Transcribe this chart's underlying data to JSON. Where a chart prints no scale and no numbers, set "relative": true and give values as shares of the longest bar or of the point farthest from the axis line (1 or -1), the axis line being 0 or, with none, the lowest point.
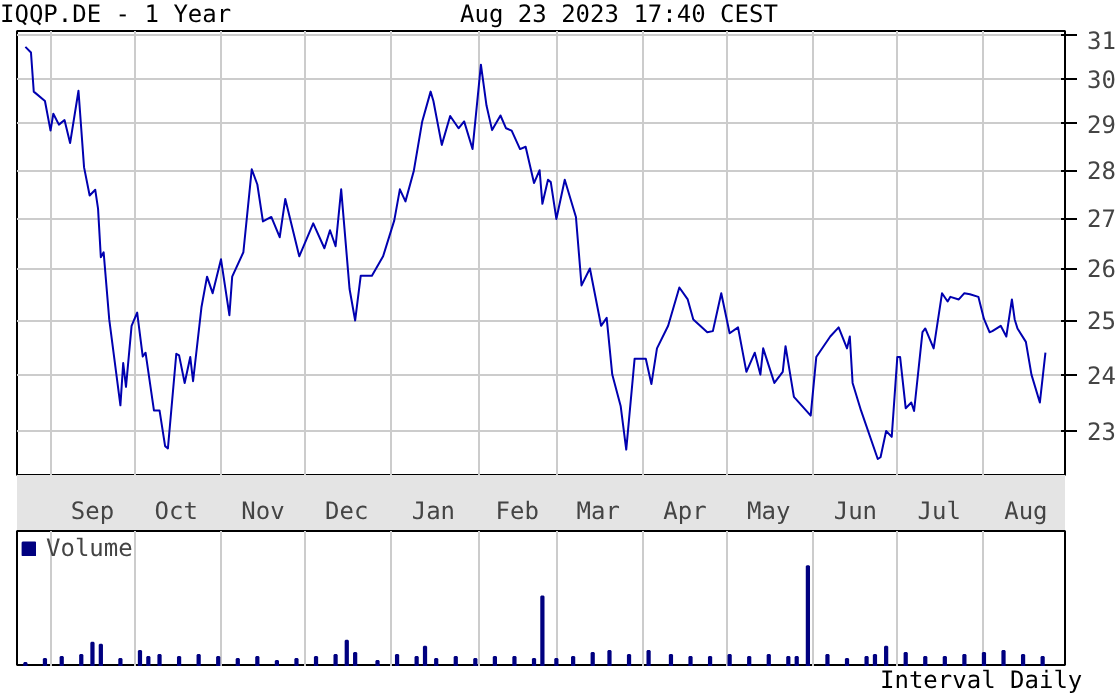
{
  "chart_data": [
    {
      "type": "line",
      "title": "IQQP.DE - 1 Year",
      "subtitle": "Aug 23 2023 17:40 CEST",
      "log": "y",
      "grid": true,
      "legend": false,
      "x": [
        "2022-08-23",
        "2022-08-25",
        "2022-08-26",
        "2022-08-30",
        "2022-09-01",
        "2022-09-02",
        "2022-09-04",
        "2022-09-06",
        "2022-09-08",
        "2022-09-11",
        "2022-09-13",
        "2022-09-15",
        "2022-09-17",
        "2022-09-18",
        "2022-09-19",
        "2022-09-20",
        "2022-09-22",
        "2022-09-26",
        "2022-09-27",
        "2022-09-28",
        "2022-09-30",
        "2022-10-02",
        "2022-10-04",
        "2022-10-05",
        "2022-10-08",
        "2022-10-10",
        "2022-10-12",
        "2022-10-13",
        "2022-10-16",
        "2022-10-17",
        "2022-10-19",
        "2022-10-21",
        "2022-10-22",
        "2022-10-25",
        "2022-10-27",
        "2022-10-29",
        "2022-11-01",
        "2022-11-04",
        "2022-11-05",
        "2022-11-09",
        "2022-11-12",
        "2022-11-14",
        "2022-11-16",
        "2022-11-19",
        "2022-11-22",
        "2022-11-24",
        "2022-11-29",
        "2022-12-04",
        "2022-12-08",
        "2022-12-10",
        "2022-12-12",
        "2022-12-14",
        "2022-12-17",
        "2022-12-19",
        "2022-12-21",
        "2022-12-25",
        "2022-12-29",
        "2023-01-02",
        "2023-01-04",
        "2023-01-06",
        "2023-01-09",
        "2023-01-12",
        "2023-01-15",
        "2023-01-16",
        "2023-01-19",
        "2023-01-22",
        "2023-01-25",
        "2023-01-27",
        "2023-01-30",
        "2023-02-02",
        "2023-02-04",
        "2023-02-06",
        "2023-02-09",
        "2023-02-11",
        "2023-02-13",
        "2023-02-16",
        "2023-02-18",
        "2023-02-21",
        "2023-02-23",
        "2023-02-24",
        "2023-02-26",
        "2023-02-27",
        "2023-03-01",
        "2023-03-04",
        "2023-03-08",
        "2023-03-10",
        "2023-03-13",
        "2023-03-17",
        "2023-03-19",
        "2023-03-21",
        "2023-03-24",
        "2023-03-26",
        "2023-03-29",
        "2023-04-02",
        "2023-04-04",
        "2023-04-06",
        "2023-04-10",
        "2023-04-14",
        "2023-04-17",
        "2023-04-19",
        "2023-04-24",
        "2023-04-26",
        "2023-04-29",
        "2023-05-02",
        "2023-05-05",
        "2023-05-08",
        "2023-05-11",
        "2023-05-13",
        "2023-05-14",
        "2023-05-18",
        "2023-05-21",
        "2023-05-22",
        "2023-05-25",
        "2023-05-31",
        "2023-06-02",
        "2023-06-07",
        "2023-06-10",
        "2023-06-13",
        "2023-06-14",
        "2023-06-15",
        "2023-06-18",
        "2023-06-24",
        "2023-06-25",
        "2023-06-27",
        "2023-06-29",
        "2023-07-01",
        "2023-07-02",
        "2023-07-04",
        "2023-07-06",
        "2023-07-07",
        "2023-07-10",
        "2023-07-11",
        "2023-07-14",
        "2023-07-17",
        "2023-07-19",
        "2023-07-20",
        "2023-07-23",
        "2023-07-25",
        "2023-07-27",
        "2023-07-30",
        "2023-08-01",
        "2023-08-03",
        "2023-08-04",
        "2023-08-07",
        "2023-08-09",
        "2023-08-11",
        "2023-08-12",
        "2023-08-13",
        "2023-08-16",
        "2023-08-18",
        "2023-08-21",
        "2023-08-23"
      ],
      "series": [
        {
          "color": "#0000b0",
          "values": [
            30.73,
            30.6,
            29.71,
            29.5,
            28.85,
            29.22,
            28.98,
            29.08,
            28.58,
            29.73,
            28.06,
            27.47,
            27.59,
            27.2,
            26.22,
            26.32,
            25.02,
            23.45,
            24.21,
            23.78,
            24.9,
            25.15,
            24.33,
            24.4,
            23.36,
            23.36,
            22.74,
            22.7,
            24.38,
            24.35,
            23.85,
            24.32,
            23.88,
            25.25,
            25.84,
            25.52,
            26.18,
            25.1,
            25.84,
            26.32,
            28.02,
            27.7,
            26.94,
            27.03,
            26.62,
            27.4,
            26.24,
            26.9,
            26.4,
            26.76,
            26.44,
            27.6,
            25.6,
            25.0,
            25.86,
            25.86,
            26.24,
            26.96,
            27.6,
            27.35,
            27.99,
            29.05,
            29.71,
            29.5,
            28.54,
            29.17,
            28.9,
            29.05,
            28.45,
            30.32,
            29.4,
            28.86,
            29.18,
            28.9,
            28.85,
            28.45,
            28.5,
            27.73,
            28.0,
            27.3,
            27.8,
            27.75,
            26.99,
            27.8,
            27.03,
            25.67,
            26.0,
            24.9,
            25.05,
            24.0,
            23.44,
            22.68,
            24.29,
            24.29,
            23.83,
            24.48,
            24.9,
            25.63,
            25.4,
            25.02,
            24.78,
            24.8,
            25.52,
            24.76,
            24.87,
            24.05,
            24.4,
            24.0,
            24.48,
            23.85,
            24.05,
            24.52,
            23.6,
            23.27,
            24.32,
            24.7,
            24.87,
            24.48,
            24.7,
            23.85,
            23.36,
            22.52,
            22.55,
            23.0,
            22.9,
            24.32,
            24.32,
            23.4,
            23.5,
            23.35,
            24.78,
            24.85,
            24.48,
            25.52,
            25.36,
            25.45,
            25.4,
            25.52,
            25.5,
            25.45,
            25.03,
            24.78,
            24.8,
            24.9,
            24.7,
            25.4,
            25.02,
            24.85,
            24.6,
            24.0,
            23.5,
            24.4
          ]
        }
      ],
      "xlim": [
        "2022-08-20",
        "2023-08-30"
      ],
      "xticks": [
        {
          "value": "2022-09-01",
          "label": null
        },
        {
          "value": "2022-09-16",
          "label": "Sep"
        },
        {
          "value": "2022-10-01",
          "label": null
        },
        {
          "value": "2022-10-16",
          "label": "Oct"
        },
        {
          "value": "2022-11-01",
          "label": null
        },
        {
          "value": "2022-11-16",
          "label": "Nov"
        },
        {
          "value": "2022-12-01",
          "label": null
        },
        {
          "value": "2022-12-16",
          "label": "Dec"
        },
        {
          "value": "2023-01-01",
          "label": null
        },
        {
          "value": "2023-01-16",
          "label": "Jan"
        },
        {
          "value": "2023-02-01",
          "label": null
        },
        {
          "value": "2023-02-15",
          "label": "Feb"
        },
        {
          "value": "2023-03-01",
          "label": null
        },
        {
          "value": "2023-03-16",
          "label": "Mar"
        },
        {
          "value": "2023-04-01",
          "label": null
        },
        {
          "value": "2023-04-16",
          "label": "Apr"
        },
        {
          "value": "2023-05-01",
          "label": null
        },
        {
          "value": "2023-05-16",
          "label": "May"
        },
        {
          "value": "2023-06-01",
          "label": null
        },
        {
          "value": "2023-06-16",
          "label": "Jun"
        },
        {
          "value": "2023-07-01",
          "label": null
        },
        {
          "value": "2023-07-16",
          "label": "Jul"
        },
        {
          "value": "2023-08-01",
          "label": null
        },
        {
          "value": "2023-08-16",
          "label": "Aug"
        }
      ],
      "ylim": [
        22.25,
        31.1
      ],
      "yticks": [
        23,
        24,
        25,
        26,
        27,
        28,
        29,
        30,
        31
      ]
    },
    {
      "type": "bar",
      "relative": true,
      "legend": "top left",
      "grid": "x",
      "tick_labels": false,
      "annotations": [
        "Interval Daily"
      ],
      "xlim": [
        "2022-08-20",
        "2023-08-30"
      ],
      "xticks": [
        {
          "value": "2022-09-01",
          "label": null
        },
        {
          "value": "2022-10-01",
          "label": null
        },
        {
          "value": "2022-11-01",
          "label": null
        },
        {
          "value": "2022-12-01",
          "label": null
        },
        {
          "value": "2023-01-01",
          "label": null
        },
        {
          "value": "2023-02-01",
          "label": null
        },
        {
          "value": "2023-03-01",
          "label": null
        },
        {
          "value": "2023-04-01",
          "label": null
        },
        {
          "value": "2023-05-01",
          "label": null
        },
        {
          "value": "2023-06-01",
          "label": null
        },
        {
          "value": "2023-07-01",
          "label": null
        },
        {
          "value": "2023-08-01",
          "label": null
        }
      ],
      "x": [
        "2022-08-23",
        "2022-08-30",
        "2022-09-05",
        "2022-09-12",
        "2022-09-16",
        "2022-09-19",
        "2022-09-26",
        "2022-10-03",
        "2022-10-06",
        "2022-10-10",
        "2022-10-17",
        "2022-10-24",
        "2022-10-31",
        "2022-11-07",
        "2022-11-14",
        "2022-11-21",
        "2022-11-28",
        "2022-12-05",
        "2022-12-12",
        "2022-12-16",
        "2022-12-19",
        "2022-12-27",
        "2023-01-03",
        "2023-01-10",
        "2023-01-13",
        "2023-01-17",
        "2023-01-24",
        "2023-01-31",
        "2023-02-07",
        "2023-02-14",
        "2023-02-21",
        "2023-02-24",
        "2023-03-01",
        "2023-03-07",
        "2023-03-14",
        "2023-03-20",
        "2023-03-27",
        "2023-04-03",
        "2023-04-11",
        "2023-04-18",
        "2023-04-25",
        "2023-05-02",
        "2023-05-09",
        "2023-05-16",
        "2023-05-23",
        "2023-05-26",
        "2023-05-30",
        "2023-06-06",
        "2023-06-13",
        "2023-06-20",
        "2023-06-23",
        "2023-06-27",
        "2023-07-04",
        "2023-07-11",
        "2023-07-18",
        "2023-07-25",
        "2023-08-01",
        "2023-08-08",
        "2023-08-15",
        "2023-08-22"
      ],
      "series": [
        {
          "name": "Volume",
          "color": "#000080",
          "values": [
            0.04,
            0.08,
            0.1,
            0.12,
            0.24,
            0.22,
            0.08,
            0.16,
            0.1,
            0.12,
            0.1,
            0.12,
            0.1,
            0.08,
            0.1,
            0.06,
            0.08,
            0.1,
            0.12,
            0.26,
            0.14,
            0.06,
            0.12,
            0.1,
            0.2,
            0.08,
            0.1,
            0.08,
            0.1,
            0.1,
            0.08,
            0.7,
            0.08,
            0.1,
            0.14,
            0.16,
            0.12,
            0.16,
            0.12,
            0.1,
            0.1,
            0.12,
            0.1,
            0.12,
            0.1,
            0.1,
            1,
            0.12,
            0.08,
            0.1,
            0.12,
            0.2,
            0.14,
            0.1,
            0.1,
            0.12,
            0.14,
            0.16,
            0.12,
            0.1
          ]
        }
      ]
    }
  ]
}
